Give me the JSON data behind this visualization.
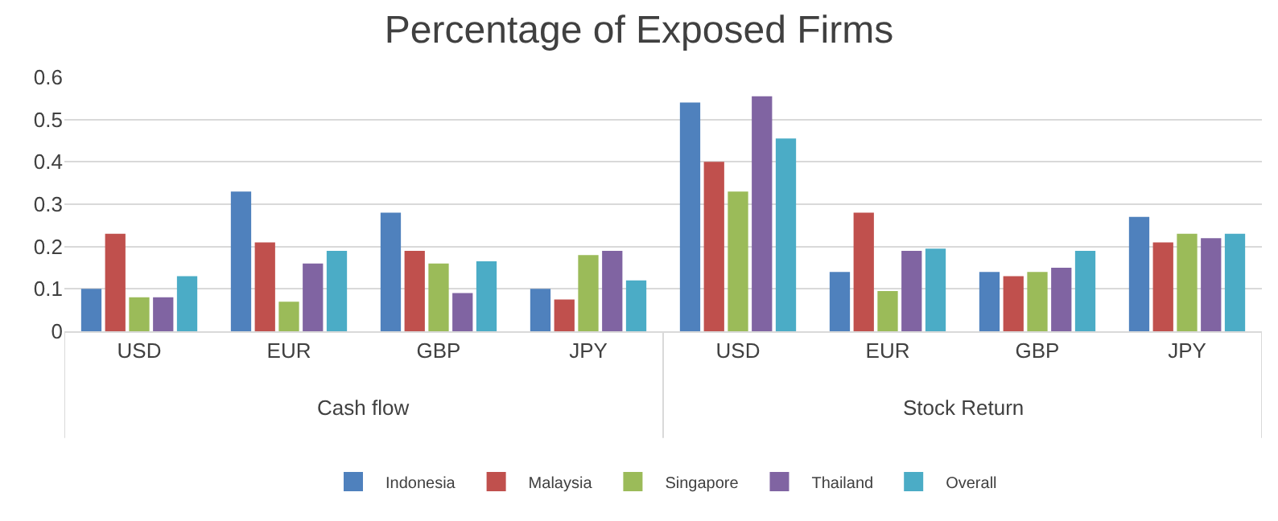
{
  "chart_data": {
    "type": "bar",
    "title": "Percentage of Exposed Firms",
    "categories": [
      "USD",
      "EUR",
      "GBP",
      "JPY",
      "USD",
      "EUR",
      "GBP",
      "JPY"
    ],
    "series": [
      {
        "name": "Indonesia",
        "color": "#4f81bd",
        "values": [
          0.1,
          0.33,
          0.28,
          0.1,
          0.54,
          0.14,
          0.14,
          0.27
        ]
      },
      {
        "name": "Malaysia",
        "color": "#c0504d",
        "values": [
          0.23,
          0.21,
          0.19,
          0.075,
          0.4,
          0.28,
          0.13,
          0.21
        ]
      },
      {
        "name": "Singapore",
        "color": "#9bbb59",
        "values": [
          0.08,
          0.07,
          0.16,
          0.18,
          0.33,
          0.095,
          0.14,
          0.23
        ]
      },
      {
        "name": "Thailand",
        "color": "#8064a2",
        "values": [
          0.08,
          0.16,
          0.09,
          0.19,
          0.555,
          0.19,
          0.15,
          0.22
        ]
      },
      {
        "name": "Overall",
        "color": "#4bacc6",
        "values": [
          0.13,
          0.19,
          0.165,
          0.12,
          0.455,
          0.195,
          0.19,
          0.23
        ]
      }
    ],
    "annotations": [
      "Cash flow",
      "Stock Return"
    ],
    "ylim": [
      0,
      0.6
    ],
    "yticks": [
      0,
      0.1,
      0.2,
      0.3,
      0.4,
      0.5,
      0.6
    ],
    "grid": "y",
    "legend": "bottom"
  }
}
